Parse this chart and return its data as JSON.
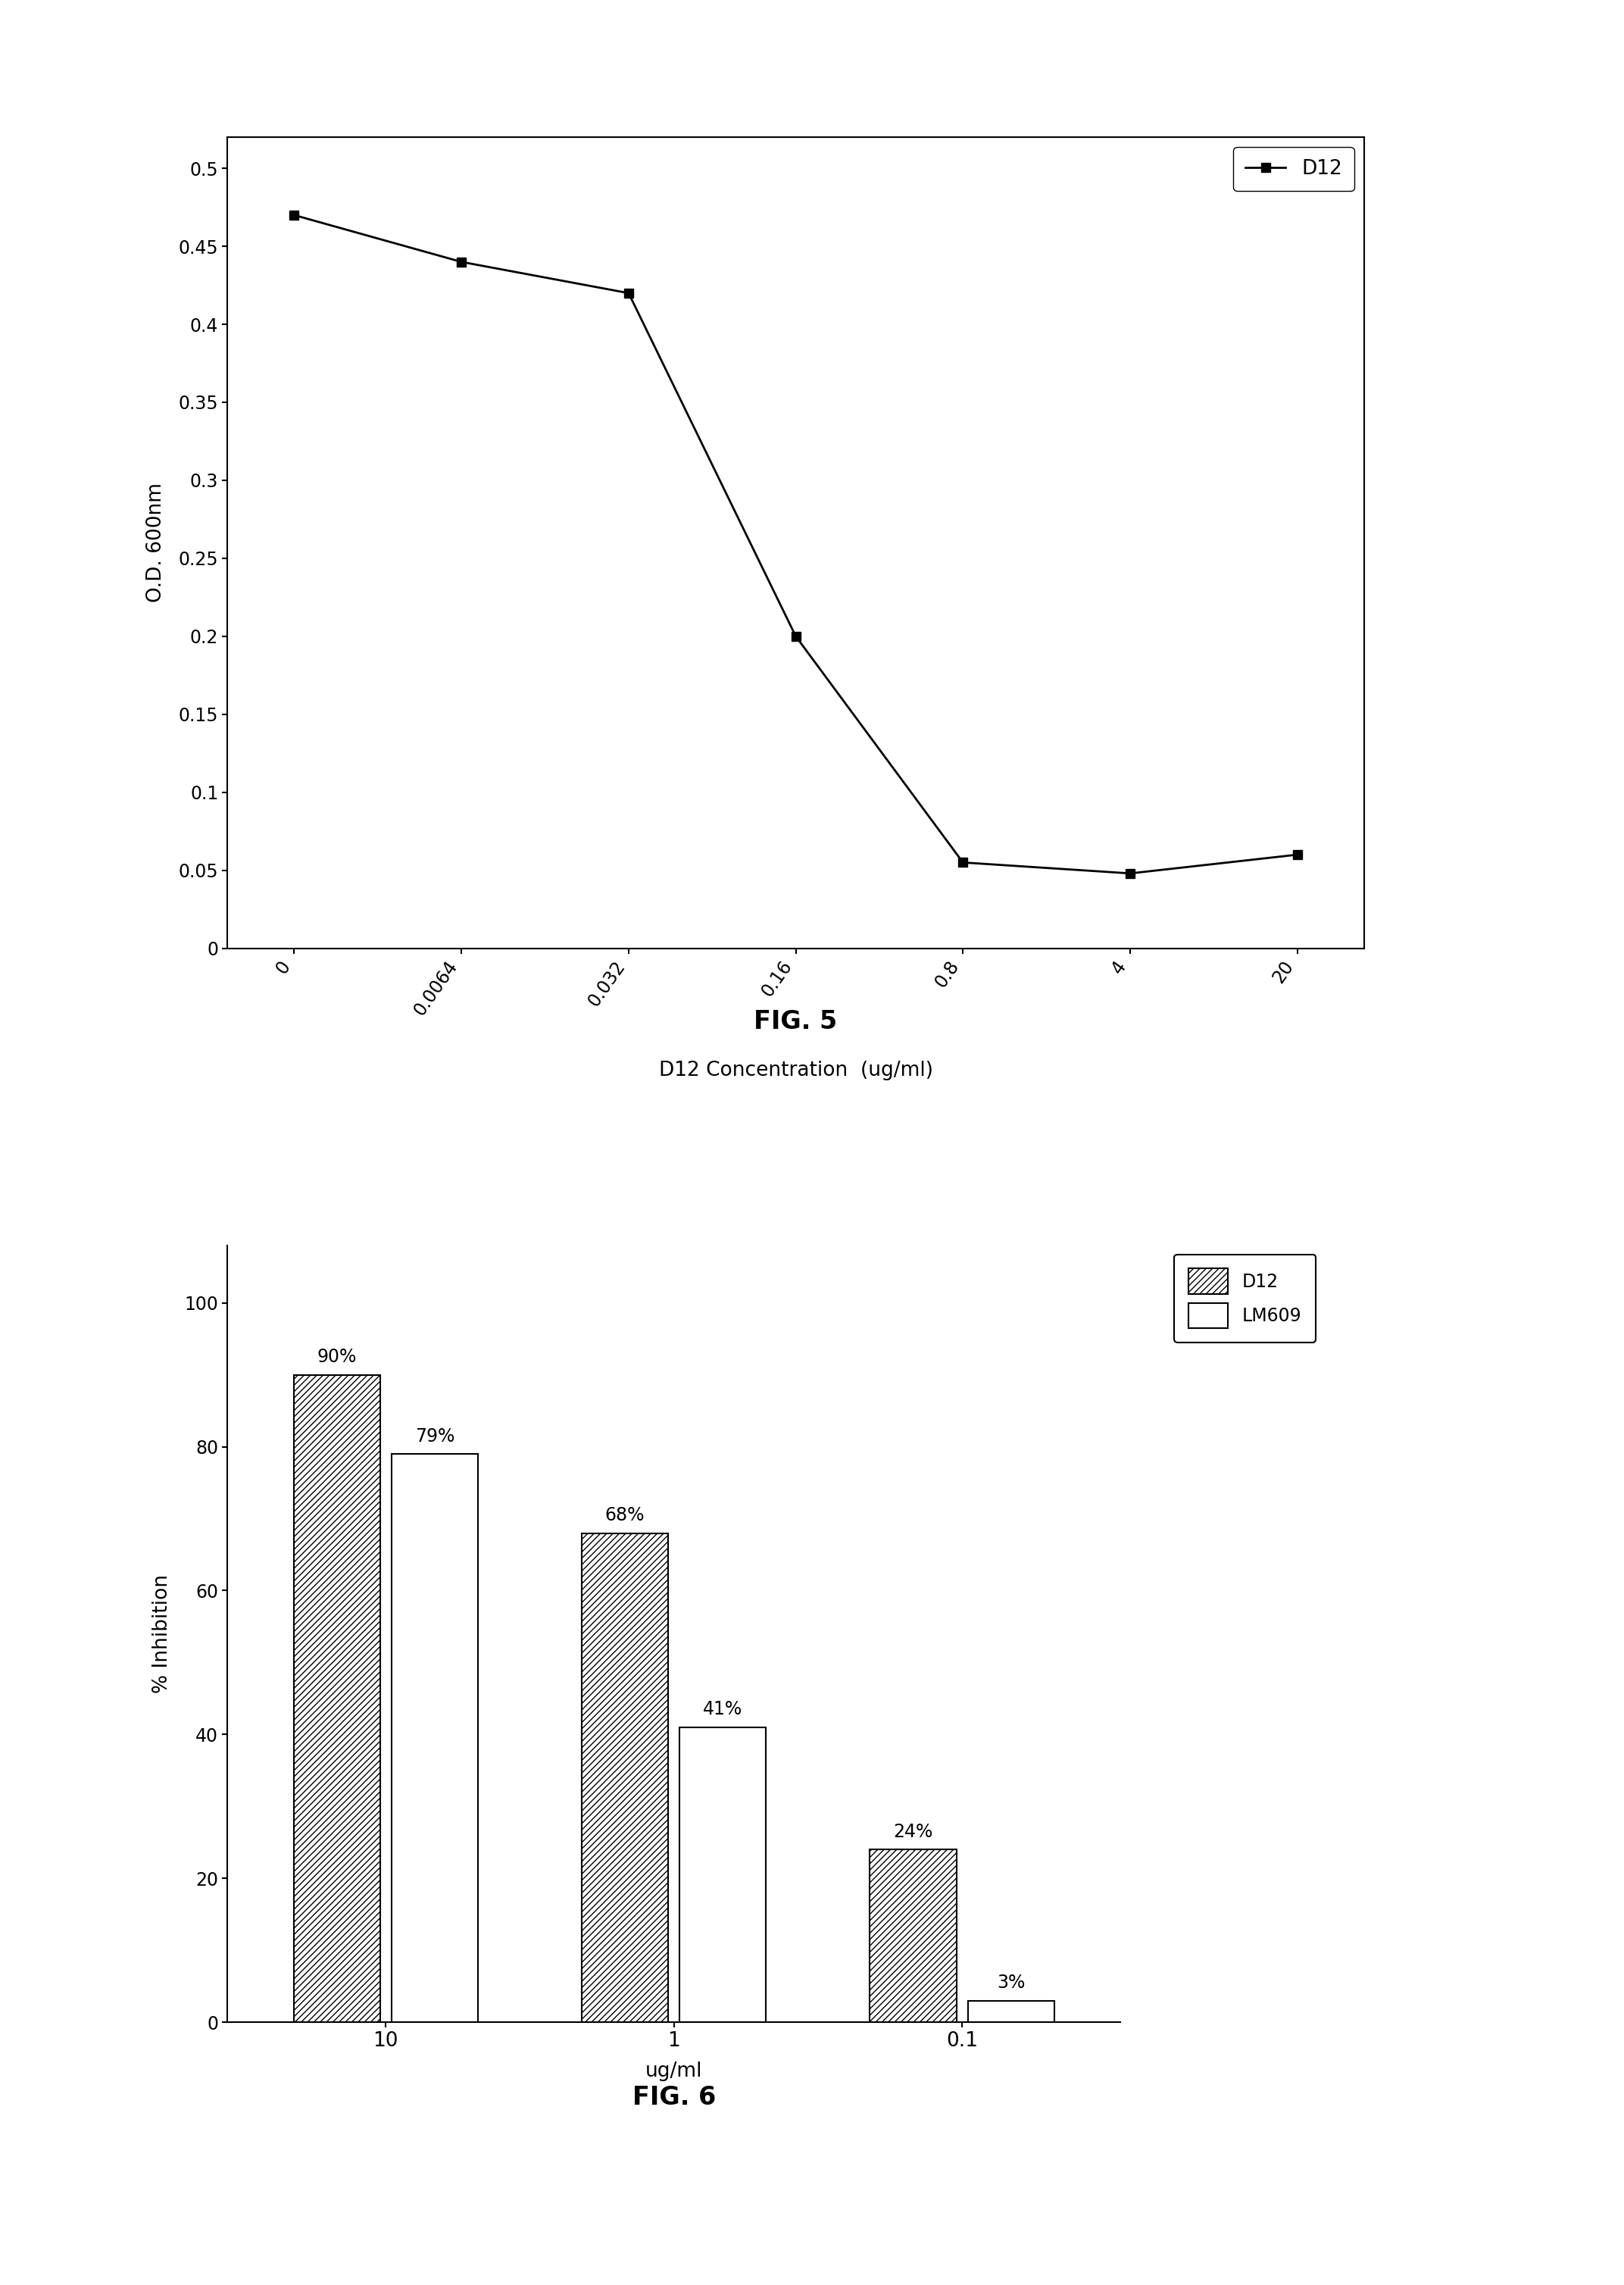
{
  "fig5": {
    "x_values": [
      0,
      0.0064,
      0.032,
      0.16,
      0.8,
      4,
      20
    ],
    "y_values": [
      0.47,
      0.44,
      0.42,
      0.2,
      0.055,
      0.048,
      0.06
    ],
    "x_tick_labels": [
      "0",
      "0.0064",
      "0.032",
      "0.16",
      "0.8",
      "4",
      "20"
    ],
    "ylabel": "O.D. 600nm",
    "xlabel": "D12 Concentration  (ug/ml)",
    "legend_label": "D12",
    "ylim": [
      0,
      0.52
    ],
    "yticks": [
      0,
      0.05,
      0.1,
      0.15,
      0.2,
      0.25,
      0.3,
      0.35,
      0.4,
      0.45,
      0.5
    ],
    "fig_label": "FIG. 5"
  },
  "fig6": {
    "categories": [
      "10",
      "1",
      "0.1"
    ],
    "d12_values": [
      90,
      68,
      24
    ],
    "lm609_values": [
      79,
      41,
      3
    ],
    "d12_labels": [
      "90%",
      "68%",
      "24%"
    ],
    "lm609_labels": [
      "79%",
      "41%",
      "3%"
    ],
    "ylabel": "% Inhibition",
    "xlabel": "ug/ml",
    "legend_d12": "D12",
    "legend_lm609": "LM609",
    "ylim": [
      0,
      108
    ],
    "yticks": [
      0,
      20,
      40,
      60,
      80,
      100
    ],
    "fig_label": "FIG. 6"
  }
}
